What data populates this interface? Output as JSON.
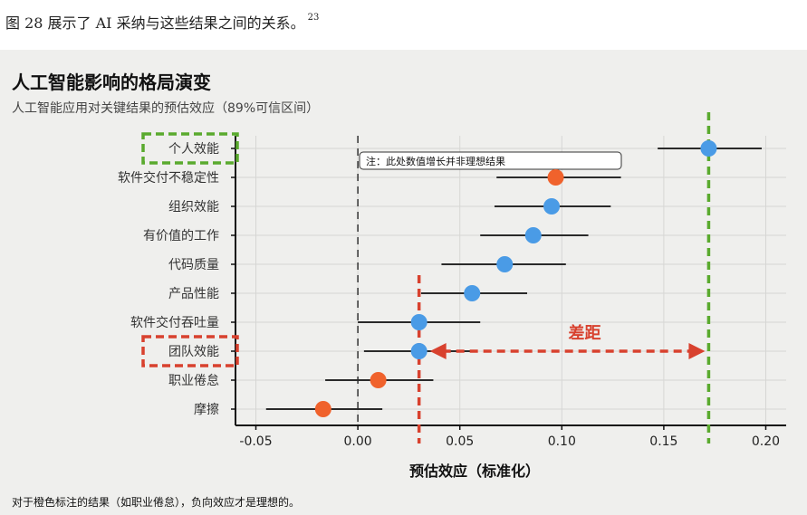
{
  "caption": {
    "text": "图 28 展示了 AI 采纳与这些结果之间的关系。",
    "ref": "23"
  },
  "figure": {
    "title": "人工智能影响的格局演变",
    "subtitle": "人工智能应用对关键结果的预估效应（89%可信区间）",
    "footnote": "对于橙色标注的结果（如职业倦怠），负向效应才是理想的。"
  },
  "colors": {
    "blue": "#4a9be6",
    "orange": "#f0622c",
    "green": "#5aaa2e",
    "red": "#d8412e",
    "line": "#2a2a2a",
    "grid": "#d6d6d4"
  },
  "chart_data": {
    "type": "scatter",
    "xlabel": "预估效应（标准化）",
    "xlim": [
      -0.06,
      0.21
    ],
    "xticks": [
      -0.05,
      0.0,
      0.05,
      0.1,
      0.15,
      0.2
    ],
    "xtick_labels": [
      "-0.05",
      "0.00",
      "0.05",
      "0.10",
      "0.15",
      "0.20"
    ],
    "grid": true,
    "zero_line": true,
    "categories": [
      "个人效能",
      "软件交付不稳定性",
      "组织效能",
      "有价值的工作",
      "代码质量",
      "产品性能",
      "软件交付吞吐量",
      "团队效能",
      "职业倦怠",
      "摩擦"
    ],
    "estimates": [
      0.172,
      0.097,
      0.095,
      0.086,
      0.072,
      0.056,
      0.03,
      0.03,
      0.01,
      -0.017
    ],
    "ci_low": [
      0.147,
      0.068,
      0.067,
      0.06,
      0.041,
      0.031,
      0.0,
      0.003,
      -0.016,
      -0.045
    ],
    "ci_high": [
      0.198,
      0.129,
      0.124,
      0.113,
      0.102,
      0.083,
      0.06,
      0.058,
      0.037,
      0.012
    ],
    "point_colors": [
      "blue",
      "orange",
      "blue",
      "blue",
      "blue",
      "blue",
      "blue",
      "blue",
      "orange",
      "orange"
    ],
    "highlights": [
      {
        "category": "个人效能",
        "color": "green",
        "reference_x": 0.172
      },
      {
        "category": "团队效能",
        "color": "red",
        "reference_x": 0.03
      }
    ],
    "annotations": {
      "note": "注：此处数值增长并非理想结果",
      "gap_label": "差距",
      "gap_from": 0.03,
      "gap_to": 0.172
    }
  }
}
